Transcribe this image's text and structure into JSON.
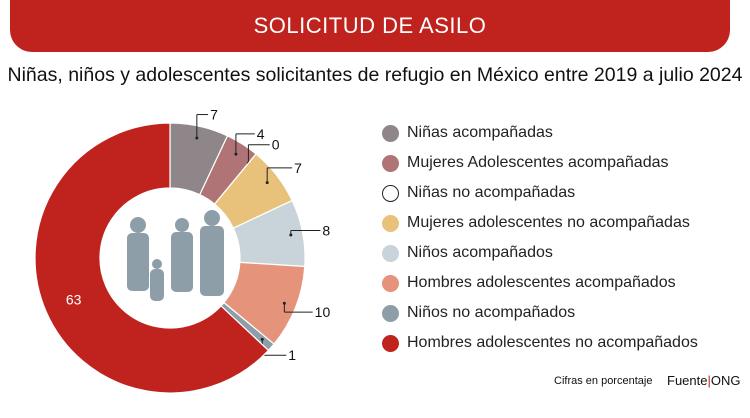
{
  "header": {
    "banner": "SOLICITUD DE ASILO",
    "title": "Niñas, niños y adolescentes solicitantes de refugio en México entre 2019 a julio 2024"
  },
  "chart_data": {
    "type": "pie",
    "donut": true,
    "unit": "%",
    "categories": [
      "Niñas acompañadas",
      "Mujeres Adolescentes acompañadas",
      "Niñas no acompañadas",
      "Mujeres adolescentes no acompañadas",
      "Niños acompañados",
      "Hombres adolescentes acompañados",
      "Niños no acompañados",
      "Hombres adolescentes no acompañados"
    ],
    "values": [
      7,
      4,
      0,
      7,
      8,
      10,
      1,
      63
    ],
    "colors": [
      "#8f8689",
      "#b07476",
      "#ffffff",
      "#e8c27a",
      "#c9d3da",
      "#e5937a",
      "#8e9ea8",
      "#c0231e"
    ],
    "center_icon": "family-silhouette-icon"
  },
  "footer": {
    "note": "Cifras en porcentaje",
    "source_label": "Fuente",
    "source_sep": "|",
    "source": "ONG"
  }
}
